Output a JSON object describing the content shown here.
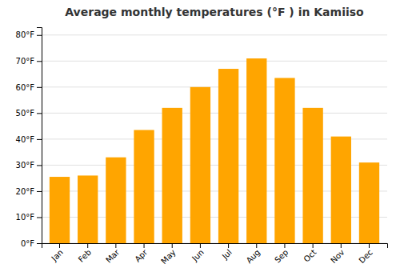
{
  "chart_data": {
    "type": "bar",
    "title": "Average monthly temperatures (°F ) in Kamiiso",
    "categories": [
      "Jan",
      "Feb",
      "Mar",
      "Apr",
      "May",
      "Jun",
      "Jul",
      "Aug",
      "Sep",
      "Oct",
      "Nov",
      "Dec"
    ],
    "values": [
      25.5,
      26.0,
      33.0,
      43.5,
      52.0,
      60.0,
      67.0,
      71.0,
      63.5,
      52.0,
      41.0,
      31.0
    ],
    "color": "#FFA500",
    "ylim": [
      0,
      83
    ],
    "yticks": [
      {
        "value": 0,
        "label": "0°F"
      },
      {
        "value": 10,
        "label": "10°F"
      },
      {
        "value": 20,
        "label": "20°F"
      },
      {
        "value": 30,
        "label": "30°F"
      },
      {
        "value": 40,
        "label": "40°F"
      },
      {
        "value": 50,
        "label": "50°F"
      },
      {
        "value": 60,
        "label": "60°F"
      },
      {
        "value": 70,
        "label": "70°F"
      },
      {
        "value": 80,
        "label": "80°F"
      }
    ],
    "grid": true
  }
}
